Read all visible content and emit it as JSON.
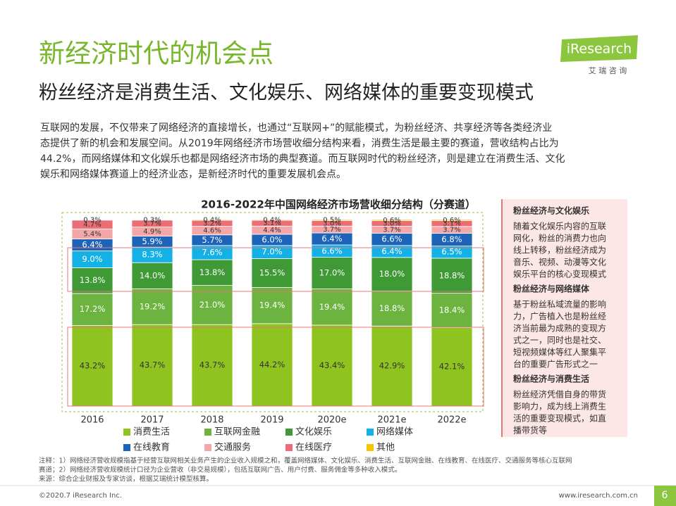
{
  "header": {
    "title": "新经济时代的机会点",
    "subtitle": "粉丝经济是消费生活、文化娱乐、网络媒体的重要变现模式",
    "logo": "iResearch",
    "logo_sub": "艾 瑞 咨 询"
  },
  "intro": [
    "互联网的发展，不仅带来了网络经济的直接增长，也通过“互联网+”的赋能模式，为粉丝经济、共享经济等各类经济业",
    "态提供了新的机会和发展空间。从2019年网络经济市场营收细分结构来看，消费生活是最主要的赛道，营收结构占比为",
    "44.2%，而网络媒体和文化娱乐也都是网络经济市场的典型赛道。而互联网时代的粉丝经济，则是建立在消费生活、文化",
    "娱乐和网络媒体赛道上的经济业态，是新经济时代的重要发展机会点。"
  ],
  "chart_data": {
    "type": "stacked_bar",
    "title": "2016-2022年中国网络经济市场营收细分结构（分赛道）",
    "categories": [
      "2016",
      "2017",
      "2018",
      "2019",
      "2020e",
      "2021e",
      "2022e"
    ],
    "ylim": [
      0,
      100
    ],
    "series": [
      {
        "name": "消费生活",
        "color": "#8fc31f",
        "values": [
          43.2,
          43.7,
          43.7,
          44.2,
          43.4,
          42.9,
          42.1
        ],
        "value_labels": [
          "43.2%",
          "43.7%",
          "43.7%",
          "44.2%",
          "43.4%",
          "42.9%",
          "42.1%"
        ]
      },
      {
        "name": "互联网金融",
        "color": "#6db33f",
        "values": [
          17.2,
          19.2,
          21.0,
          19.4,
          19.4,
          18.8,
          18.4
        ],
        "value_labels": [
          "17.2%",
          "19.2%",
          "21.0%",
          "19.4%",
          "19.4%",
          "18.8%",
          "18.4%"
        ]
      },
      {
        "name": "文化娱乐",
        "color": "#3f9a35",
        "values": [
          13.8,
          14.0,
          13.8,
          15.5,
          17.0,
          18.0,
          18.8
        ],
        "value_labels": [
          "13.8%",
          "14.0%",
          "13.8%",
          "15.5%",
          "17.0%",
          "18.0%",
          "18.8%"
        ]
      },
      {
        "name": "网络媒体",
        "color": "#14b1e7",
        "values": [
          9.0,
          8.3,
          7.6,
          7.0,
          6.6,
          6.4,
          6.5
        ],
        "value_labels": [
          "9.0%",
          "8.3%",
          "7.6%",
          "7.0%",
          "6.6%",
          "6.4%",
          "6.5%"
        ]
      },
      {
        "name": "在线教育",
        "color": "#1d63b8",
        "values": [
          6.4,
          5.9,
          5.7,
          6.0,
          6.4,
          6.6,
          6.8
        ],
        "value_labels": [
          "6.4%",
          "5.9%",
          "5.7%",
          "6.0%",
          "6.4%",
          "6.6%",
          "6.8%"
        ]
      },
      {
        "name": "交通服务",
        "color": "#f4a7a8",
        "values": [
          5.4,
          4.9,
          4.6,
          4.4,
          3.7,
          3.7,
          3.7
        ],
        "value_labels": [
          "5.4%",
          "4.9%",
          "4.6%",
          "4.4%",
          "3.7%",
          "3.7%",
          "3.7%"
        ]
      },
      {
        "name": "在线医疗",
        "color": "#ec6d74",
        "values": [
          4.7,
          3.7,
          3.2,
          3.1,
          3.0,
          3.0,
          3.1
        ],
        "value_labels": [
          "4.7%",
          "3.7%",
          "3.2%",
          "3.1%",
          "3.0%",
          "3.0%",
          "3.1%"
        ]
      },
      {
        "name": "其他",
        "color": "#f8c400",
        "values": [
          0.3,
          0.3,
          0.4,
          0.4,
          0.5,
          0.6,
          0.6
        ],
        "value_labels": [
          "0.3%",
          "0.3%",
          "0.4%",
          "0.4%",
          "0.5%",
          "0.6%",
          "0.6%"
        ]
      }
    ]
  },
  "side_panel": [
    {
      "heading": "粉丝经济与文化娱乐",
      "lines": [
        "随着文化娱乐内容的互联",
        "网化，粉丝的消费力也向",
        "线上转移，粉丝经济成为",
        "音乐、视频、动漫等文化",
        "娱乐平台的核心变现模式"
      ]
    },
    {
      "heading": "粉丝经济与网络媒体",
      "lines": [
        "基于粉丝私域流量的影响",
        "力，广告植入也是粉丝经",
        "济当前最为成熟的变现方",
        "式之一，同时也是社交、",
        "短视频媒体等红人聚集平",
        "台的重要广告形式之一"
      ]
    },
    {
      "heading": "粉丝经济与消费生活",
      "lines": [
        "粉丝经济凭借自身的带货",
        "影响力，成为线上消费生",
        "活的重要变现模式，如直",
        "播带货等"
      ]
    }
  ],
  "notes": [
    "注释：1）网络经济营收规模指基于经营互联网相关业务产生的企业收入规模之和，覆盖网络媒体、文化娱乐、消费生活、互联网金融、在线教育、在线医疗、交通服务等核心互联网",
    "赛道；2）网络经济营收规模统计口径为企业营收（非交易规模），包括互联网广告、用户付费、服务佣金等多种收入模式。",
    "来源：综合企业财报及专家访谈，根据艾瑞统计模型核算。"
  ],
  "footer": {
    "copyright": "©2020.7 iResearch Inc.",
    "url": "www.iresearch.com.cn",
    "page": "6"
  }
}
